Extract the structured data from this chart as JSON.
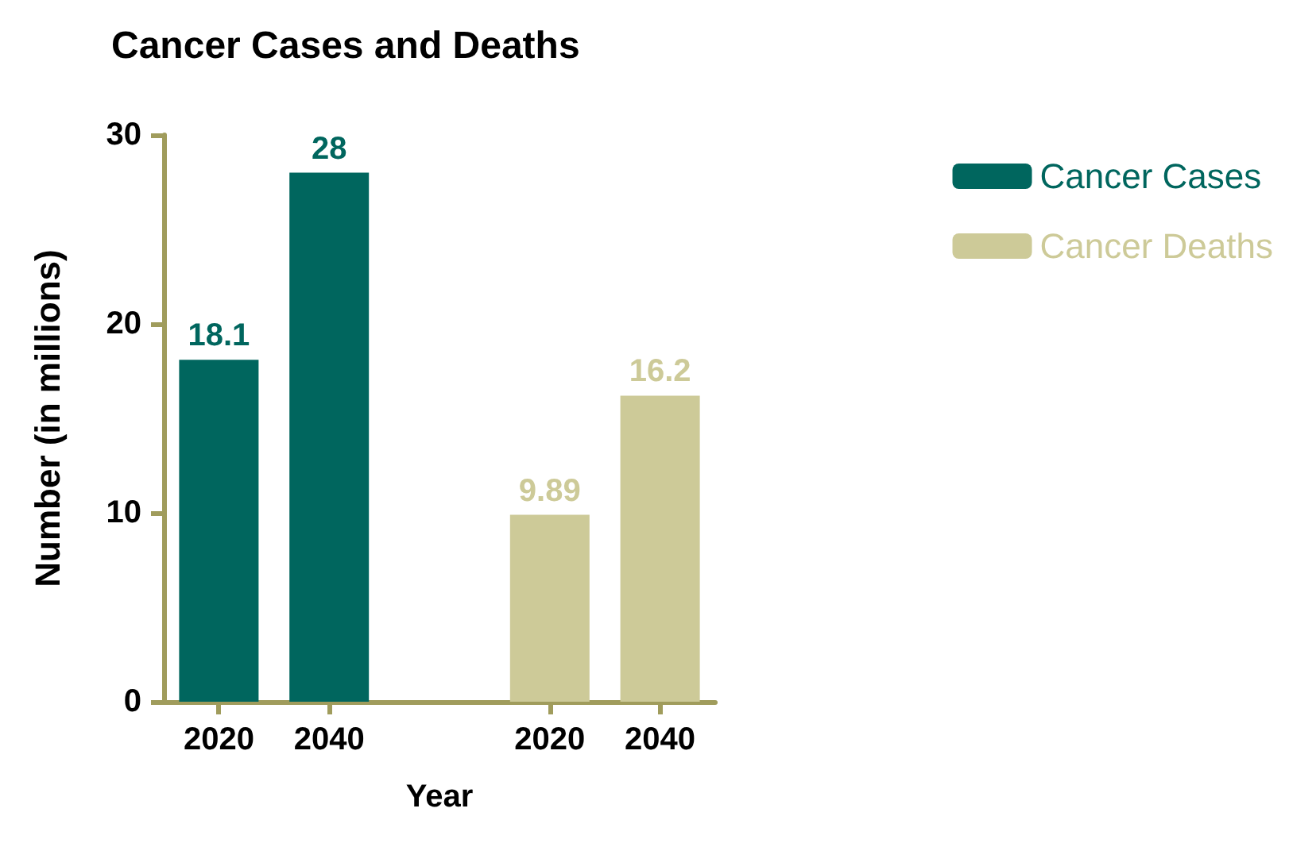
{
  "chart_data": {
    "type": "bar",
    "title": "Cancer Cases and Deaths",
    "xlabel": "Year",
    "ylabel": "Number (in millions)",
    "categories": [
      "2020",
      "2040",
      null,
      "2020",
      "2040"
    ],
    "series": [
      {
        "name": "Cancer Cases",
        "color": "#00665e",
        "values": [
          18.1,
          28,
          null,
          null,
          null
        ]
      },
      {
        "name": "Cancer Deaths",
        "color": "#cdca98",
        "values": [
          null,
          null,
          null,
          9.89,
          16.2
        ]
      }
    ],
    "ylim": [
      0,
      30
    ],
    "yticks": [
      0,
      10,
      20,
      30
    ],
    "data_labels": true,
    "legend": "top right",
    "grid": false
  }
}
